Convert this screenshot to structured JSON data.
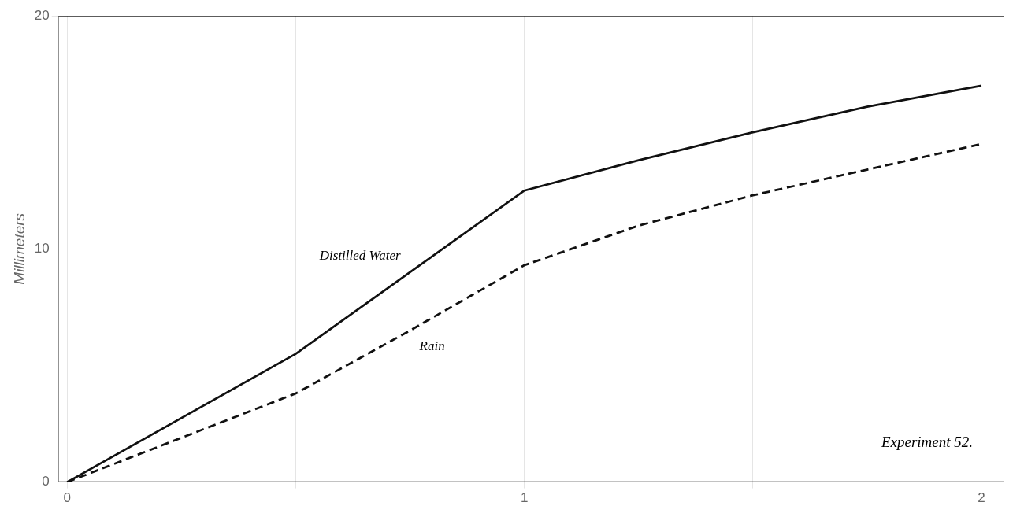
{
  "chart_data": {
    "type": "line",
    "ylabel": "Millimeters",
    "x": [
      0,
      0.5,
      0.75,
      1.0,
      1.25,
      1.5,
      1.75,
      2.0
    ],
    "series": [
      {
        "name": "Distilled Water",
        "color": "#111111",
        "line_style": "solid",
        "values": [
          0,
          5.5,
          9.0,
          12.5,
          13.8,
          15.0,
          16.1,
          17.0
        ]
      },
      {
        "name": "Rain",
        "color": "#111111",
        "line_style": "dashed",
        "values": [
          0,
          3.8,
          6.5,
          9.3,
          11.0,
          12.3,
          13.4,
          14.5
        ]
      }
    ],
    "annotations": [
      "Experiment 52."
    ],
    "xlim": [
      -0.02,
      2.05
    ],
    "ylim": [
      0,
      20
    ],
    "xticks": [
      0,
      {
        "value": 0.5,
        "label": ""
      },
      1,
      {
        "value": 1.5,
        "label": ""
      },
      2
    ],
    "yticks": [
      0,
      10,
      20
    ],
    "grid": true
  }
}
